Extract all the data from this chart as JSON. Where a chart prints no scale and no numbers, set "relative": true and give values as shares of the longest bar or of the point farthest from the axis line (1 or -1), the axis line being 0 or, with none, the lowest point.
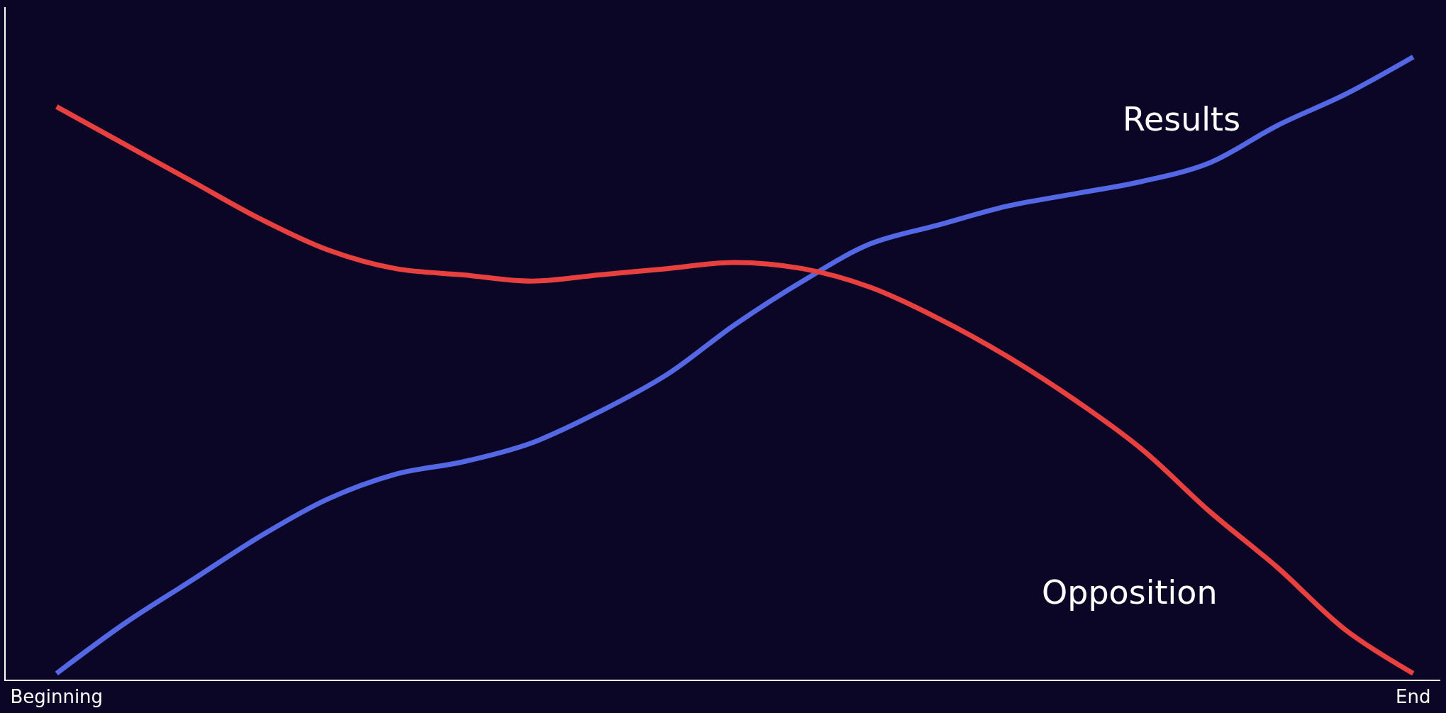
{
  "chart_data": {
    "type": "line",
    "relative": true,
    "categories": [
      "Beginning",
      null,
      null,
      null,
      null,
      null,
      null,
      null,
      null,
      null,
      null,
      null,
      null,
      null,
      null,
      null,
      null,
      null,
      null,
      null,
      "End"
    ],
    "marker": "none",
    "line_style": "solid",
    "grid": false,
    "legend": false,
    "tick_labels": "x",
    "series": [
      {
        "name": "Results",
        "color": "#5468e6",
        "values": [
          0.01,
          0.09,
          0.16,
          0.23,
          0.29,
          0.33,
          0.35,
          0.38,
          0.43,
          0.49,
          0.57,
          0.64,
          0.7,
          0.73,
          0.76,
          0.78,
          0.8,
          0.83,
          0.89,
          0.94,
          1
        ]
      },
      {
        "name": "Opposition",
        "color": "#e8403f",
        "values": [
          0.92,
          0.86,
          0.8,
          0.74,
          0.69,
          0.66,
          0.65,
          0.64,
          0.65,
          0.66,
          0.67,
          0.66,
          0.63,
          0.58,
          0.52,
          0.45,
          0.37,
          0.27,
          0.18,
          0.08,
          0.01
        ]
      }
    ]
  }
}
